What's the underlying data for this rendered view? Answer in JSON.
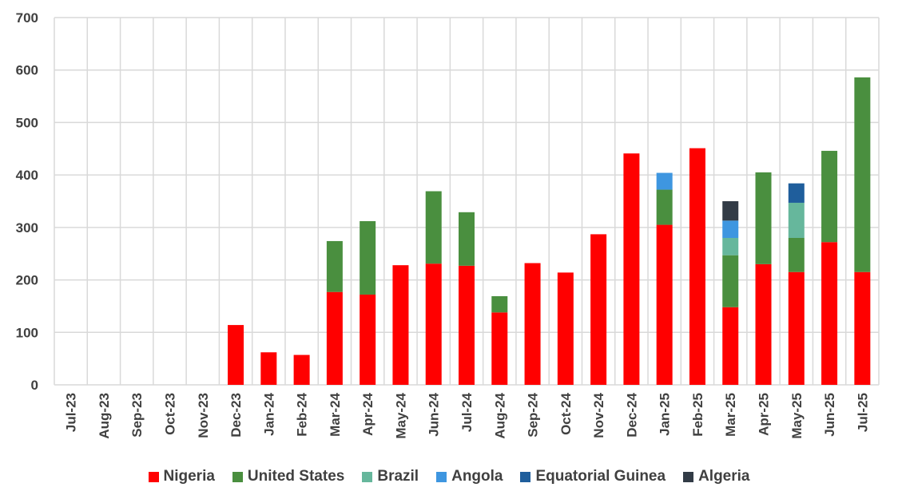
{
  "chart_data": {
    "type": "bar",
    "stacked": true,
    "categories": [
      "Jul-23",
      "Aug-23",
      "Sep-23",
      "Oct-23",
      "Nov-23",
      "Dec-23",
      "Jan-24",
      "Feb-24",
      "Mar-24",
      "Apr-24",
      "May-24",
      "Jun-24",
      "Jul-24",
      "Aug-24",
      "Sep-24",
      "Oct-24",
      "Nov-24",
      "Dec-24",
      "Jan-25",
      "Feb-25",
      "Mar-25",
      "Apr-25",
      "May-25",
      "Jun-25",
      "Jul-25"
    ],
    "series": [
      {
        "name": "Nigeria",
        "color": "#ff0000",
        "values": [
          0,
          0,
          0,
          0,
          0,
          114,
          62,
          57,
          177,
          172,
          228,
          231,
          227,
          138,
          232,
          214,
          287,
          441,
          305,
          451,
          148,
          230,
          215,
          272,
          215
        ]
      },
      {
        "name": "United States",
        "color": "#4a8f3f",
        "values": [
          0,
          0,
          0,
          0,
          0,
          0,
          0,
          0,
          97,
          140,
          0,
          138,
          102,
          31,
          0,
          0,
          0,
          0,
          67,
          0,
          99,
          175,
          65,
          174,
          371
        ]
      },
      {
        "name": "Brazil",
        "color": "#66b79c",
        "values": [
          0,
          0,
          0,
          0,
          0,
          0,
          0,
          0,
          0,
          0,
          0,
          0,
          0,
          0,
          0,
          0,
          0,
          0,
          0,
          0,
          33,
          0,
          67,
          0,
          0
        ]
      },
      {
        "name": "Angola",
        "color": "#3e96e0",
        "values": [
          0,
          0,
          0,
          0,
          0,
          0,
          0,
          0,
          0,
          0,
          0,
          0,
          0,
          0,
          0,
          0,
          0,
          0,
          32,
          0,
          33,
          0,
          0,
          0,
          0
        ]
      },
      {
        "name": "Equatorial Guinea",
        "color": "#1f5e9c",
        "values": [
          0,
          0,
          0,
          0,
          0,
          0,
          0,
          0,
          0,
          0,
          0,
          0,
          0,
          0,
          0,
          0,
          0,
          0,
          0,
          0,
          0,
          0,
          37,
          0,
          0
        ]
      },
      {
        "name": "Algeria",
        "color": "#323b46",
        "values": [
          0,
          0,
          0,
          0,
          0,
          0,
          0,
          0,
          0,
          0,
          0,
          0,
          0,
          0,
          0,
          0,
          0,
          0,
          0,
          0,
          37,
          0,
          0,
          0,
          0
        ]
      }
    ],
    "title": "",
    "xlabel": "",
    "ylabel": "",
    "ylim": [
      0,
      700
    ],
    "yticks": [
      0,
      100,
      200,
      300,
      400,
      500,
      600,
      700
    ],
    "grid": true,
    "legend": "bottom"
  }
}
